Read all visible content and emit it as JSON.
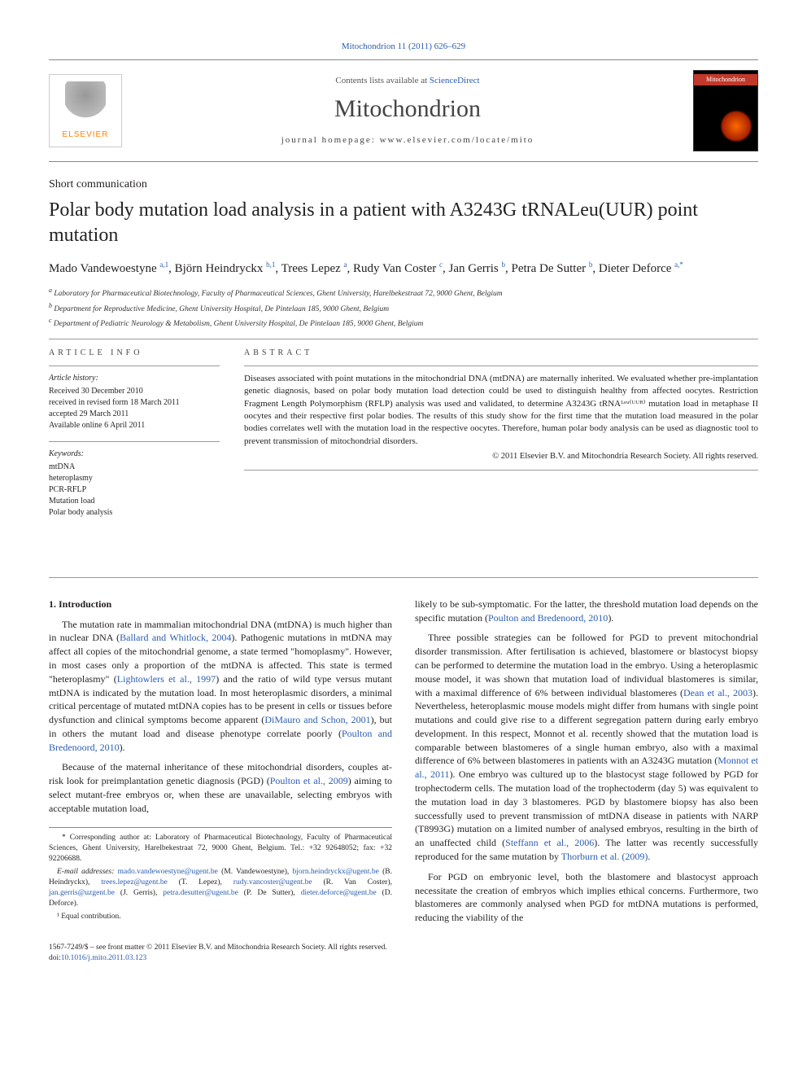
{
  "top_citation": "Mitochondrion 11 (2011) 626–629",
  "header": {
    "contents_prefix": "Contents lists available at ",
    "contents_link": "ScienceDirect",
    "journal": "Mitochondrion",
    "homepage_prefix": "journal homepage: ",
    "homepage": "www.elsevier.com/locate/mito",
    "elsevier": "ELSEVIER",
    "cover_label": "Mitochondrion"
  },
  "comm_type": "Short communication",
  "title": "Polar body mutation load analysis in a patient with A3243G tRNALeu(UUR) point mutation",
  "authors": [
    {
      "name": "Mado Vandewoestyne",
      "sup": "a,1"
    },
    {
      "name": "Björn Heindryckx",
      "sup": "b,1"
    },
    {
      "name": "Trees Lepez",
      "sup": "a"
    },
    {
      "name": "Rudy Van Coster",
      "sup": "c"
    },
    {
      "name": "Jan Gerris",
      "sup": "b"
    },
    {
      "name": "Petra De Sutter",
      "sup": "b"
    },
    {
      "name": "Dieter Deforce",
      "sup": "a,*"
    }
  ],
  "affiliations": {
    "a": "Laboratory for Pharmaceutical Biotechnology, Faculty of Pharmaceutical Sciences, Ghent University, Harelbekestraat 72, 9000 Ghent, Belgium",
    "b": "Department for Reproductive Medicine, Ghent University Hospital, De Pintelaan 185, 9000 Ghent, Belgium",
    "c": "Department of Pediatric Neurology & Metabolism, Ghent University Hospital, De Pintelaan 185, 9000 Ghent, Belgium"
  },
  "article_info": {
    "heading": "ARTICLE INFO",
    "history_label": "Article history:",
    "history": [
      "Received 30 December 2010",
      "received in revised form 18 March 2011",
      "accepted 29 March 2011",
      "Available online 6 April 2011"
    ],
    "keywords_label": "Keywords:",
    "keywords": [
      "mtDNA",
      "heteroplasmy",
      "PCR-RFLP",
      "Mutation load",
      "Polar body analysis"
    ]
  },
  "abstract": {
    "heading": "ABSTRACT",
    "text": "Diseases associated with point mutations in the mitochondrial DNA (mtDNA) are maternally inherited. We evaluated whether pre-implantation genetic diagnosis, based on polar body mutation load detection could be used to distinguish healthy from affected oocytes. Restriction Fragment Length Polymorphism (RFLP) analysis was used and validated, to determine A3243G tRNAᴸᵉᵘ⁽ᵁᵁᴿ⁾ mutation load in metaphase II oocytes and their respective first polar bodies. The results of this study show for the first time that the mutation load measured in the polar bodies correlates well with the mutation load in the respective oocytes. Therefore, human polar body analysis can be used as diagnostic tool to prevent transmission of mitochondrial disorders.",
    "copyright": "© 2011 Elsevier B.V. and Mitochondria Research Society. All rights reserved."
  },
  "section1": {
    "heading": "1. Introduction",
    "p1_a": "The mutation rate in mammalian mitochondrial DNA (mtDNA) is much higher than in nuclear DNA (",
    "p1_cite1": "Ballard and Whitlock, 2004",
    "p1_b": "). Pathogenic mutations in mtDNA may affect all copies of the mitochondrial genome, a state termed \"homoplasmy\". However, in most cases only a proportion of the mtDNA is affected. This state is termed \"heteroplasmy\" (",
    "p1_cite2": "Lightowlers et al., 1997",
    "p1_c": ") and the ratio of wild type versus mutant mtDNA is indicated by the mutation load. In most heteroplasmic disorders, a minimal critical percentage of mutated mtDNA copies has to be present in cells or tissues before dysfunction and clinical symptoms become apparent (",
    "p1_cite3": "DiMauro and Schon, 2001",
    "p1_d": "), but in others the mutant load and disease phenotype correlate poorly (",
    "p1_cite4": "Poulton and Bredenoord, 2010",
    "p1_e": ").",
    "p2_a": "Because of the maternal inheritance of these mitochondrial disorders, couples at-risk look for preimplantation genetic diagnosis (PGD) (",
    "p2_cite1": "Poulton et al., 2009",
    "p2_b": ") aiming to select mutant-free embryos or, when these are unavailable, selecting embryos with acceptable mutation load,",
    "col2_p1_a": "likely to be sub-symptomatic. For the latter, the threshold mutation load depends on the specific mutation (",
    "col2_p1_cite1": "Poulton and Bredenoord, 2010",
    "col2_p1_b": ").",
    "col2_p2_a": "Three possible strategies can be followed for PGD to prevent mitochondrial disorder transmission. After fertilisation is achieved, blastomere or blastocyst biopsy can be performed to determine the mutation load in the embryo. Using a heteroplasmic mouse model, it was shown that mutation load of individual blastomeres is similar, with a maximal difference of 6% between individual blastomeres (",
    "col2_p2_cite1": "Dean et al., 2003",
    "col2_p2_b": "). Nevertheless, heteroplasmic mouse models might differ from humans with single point mutations and could give rise to a different segregation pattern during early embryo development. In this respect, Monnot et al. recently showed that the mutation load is comparable between blastomeres of a single human embryo, also with a maximal difference of 6% between blastomeres in patients with an A3243G mutation (",
    "col2_p2_cite2": "Monnot et al., 2011",
    "col2_p2_c": "). One embryo was cultured up to the blastocyst stage followed by PGD for trophectoderm cells. The mutation load of the trophectoderm (day 5) was equivalent to the mutation load in day 3 blastomeres. PGD by blastomere biopsy has also been successfully used to prevent transmission of mtDNA disease in patients with NARP (T8993G) mutation on a limited number of analysed embryos, resulting in the birth of an unaffected child (",
    "col2_p2_cite3": "Steffann et al., 2006",
    "col2_p2_d": "). The latter was recently successfully reproduced for the same mutation by ",
    "col2_p2_cite4": "Thorburn et al. (2009)",
    "col2_p2_e": ".",
    "col2_p3": "For PGD on embryonic level, both the blastomere and blastocyst approach necessitate the creation of embryos which implies ethical concerns. Furthermore, two blastomeres are commonly analysed when PGD for mtDNA mutations is performed, reducing the viability of the"
  },
  "footnotes": {
    "corr": "* Corresponding author at: Laboratory of Pharmaceutical Biotechnology, Faculty of Pharmaceutical Sciences, Ghent University, Harelbekestraat 72, 9000 Ghent, Belgium. Tel.: +32 92648052; fax: +32 92206688.",
    "email_label": "E-mail addresses: ",
    "emails": [
      {
        "addr": "mado.vandewoestyne@ugent.be",
        "who": " (M. Vandewoestyne), "
      },
      {
        "addr": "bjorn.heindryckx@ugent.be",
        "who": " (B. Heindryckx), "
      },
      {
        "addr": "trees.lepez@ugent.be",
        "who": " (T. Lepez), "
      },
      {
        "addr": "rudy.vancoster@ugent.be",
        "who": " (R. Van Coster), "
      },
      {
        "addr": "jan.gerris@uzgent.be",
        "who": " (J. Gerris), "
      },
      {
        "addr": "petra.desutter@ugent.be",
        "who": " (P. De Sutter), "
      },
      {
        "addr": "dieter.deforce@ugent.be",
        "who": " (D. Deforce)."
      }
    ],
    "equal": "¹ Equal contribution."
  },
  "bottom": {
    "front": "1567-7249/$ – see front matter © 2011 Elsevier B.V. and Mitochondria Research Society. All rights reserved.",
    "doi_prefix": "doi:",
    "doi": "10.1016/j.mito.2011.03.123"
  },
  "colors": {
    "link": "#2a5db0",
    "text": "#231f20",
    "rule": "#999999",
    "elsevier_orange": "#ff8200"
  }
}
